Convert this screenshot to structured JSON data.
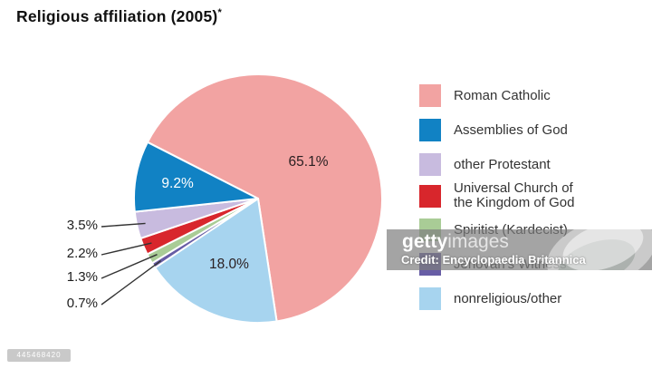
{
  "title": {
    "text": "Religious affiliation (2005)",
    "footnote_marker": "*"
  },
  "chart_data": {
    "type": "pie",
    "title": "Religious affiliation (2005)*",
    "unit": "percent",
    "start_angle_deg": 153,
    "direction": "clockwise",
    "legend_position": "right",
    "slices": [
      {
        "label": "Roman Catholic",
        "value": 65.1,
        "display": "65.1%",
        "color": "#f2a3a2",
        "label_placement": "inside",
        "label_color": "#2b2022"
      },
      {
        "label": "nonreligious/other",
        "value": 18.0,
        "display": "18.0%",
        "color": "#a7d4ef",
        "label_placement": "inside",
        "label_color": "#2b2022"
      },
      {
        "label": "Jehovah's Witness",
        "value": 0.7,
        "display": "0.7%",
        "color": "#675da5",
        "label_placement": "outside"
      },
      {
        "label": "Spiritist (Kardecist)",
        "value": 1.3,
        "display": "1.3%",
        "color": "#a9cc96",
        "label_placement": "outside"
      },
      {
        "label": "Universal Church of the Kingdom of God",
        "value": 2.2,
        "display": "2.2%",
        "color": "#d8262c",
        "label_placement": "outside"
      },
      {
        "label": "other Protestant",
        "value": 3.5,
        "display": "3.5%",
        "color": "#c8bbdf",
        "label_placement": "outside"
      },
      {
        "label": "Assemblies of God",
        "value": 9.2,
        "display": "9.2%",
        "color": "#1182c4",
        "label_placement": "inside",
        "label_color": "#ffffff"
      }
    ]
  },
  "legend": {
    "items": [
      {
        "label": "Roman Catholic",
        "color": "#f2a3a2"
      },
      {
        "label": "Assemblies of God",
        "color": "#1182c4"
      },
      {
        "label": "other Protestant",
        "color": "#c8bbdf"
      },
      {
        "label": "Universal Church of\nthe Kingdom of God",
        "color": "#d8262c"
      },
      {
        "label": "Spiritist (Kardecist)",
        "color": "#a9cc96"
      },
      {
        "label": "Jehovah's Witness",
        "color": "#675da5"
      },
      {
        "label": "nonreligious/other",
        "color": "#a7d4ef"
      }
    ]
  },
  "watermark": {
    "brand_bold": "getty",
    "brand_light": "images",
    "credit": "Credit: Encyclopaedia Britannica",
    "image_id": "445468420"
  }
}
